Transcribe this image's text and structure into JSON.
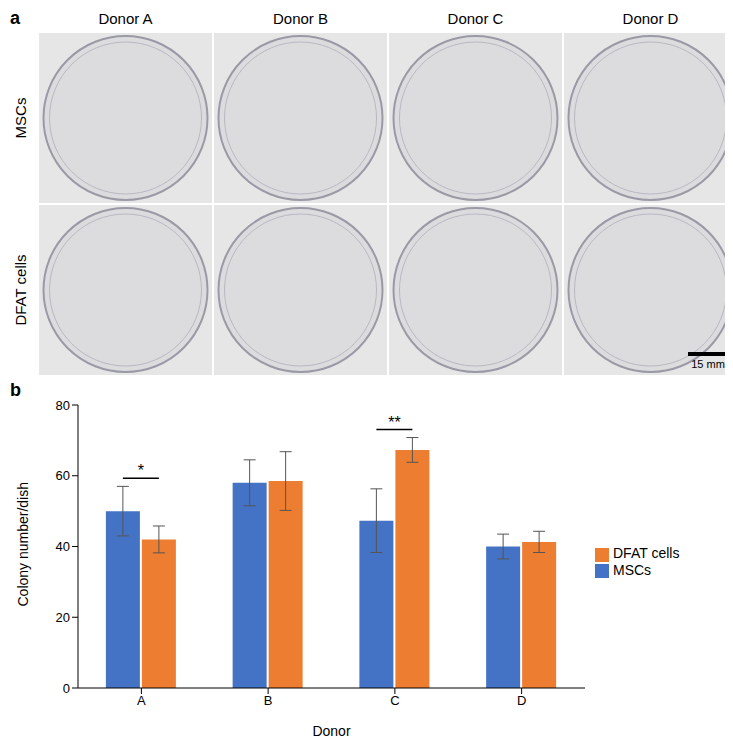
{
  "panel_a": {
    "label": "a",
    "columns": [
      "Donor A",
      "Donor B",
      "Donor C",
      "Donor D"
    ],
    "rows": [
      "MSCs",
      "DFAT cells"
    ],
    "scale_bar": "15 mm"
  },
  "chart_data": {
    "panel_label": "b",
    "type": "bar",
    "categories": [
      "A",
      "B",
      "C",
      "D"
    ],
    "x_label": "Donor",
    "y_label": "Colony number/dish",
    "ylim": [
      0,
      80
    ],
    "yticks": [
      0,
      20,
      40,
      60,
      80
    ],
    "grid": false,
    "legend": "right",
    "series": [
      {
        "name": "MSCs",
        "color": "#4472c4",
        "values": [
          50,
          58,
          47.3,
          40
        ],
        "errors": [
          7,
          6.5,
          9,
          3.5
        ]
      },
      {
        "name": "DFAT cells",
        "color": "#ed7d31",
        "values": [
          42,
          58.5,
          67.3,
          41.3
        ],
        "errors": [
          3.8,
          8.3,
          3.5,
          3
        ]
      }
    ],
    "annotations": [
      {
        "category": "A",
        "label": "*"
      },
      {
        "category": "C",
        "label": "**"
      }
    ]
  }
}
